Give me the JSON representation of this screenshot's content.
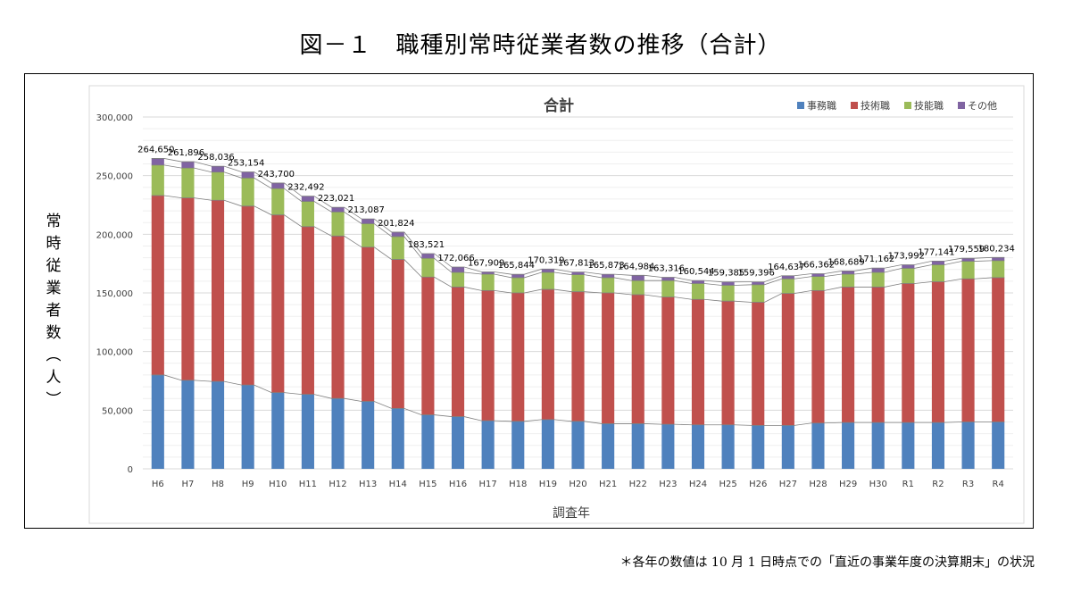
{
  "figure_title": "図－１　職種別常時従業者数の推移（合計）",
  "y_axis_title": "常時従業者数（人）",
  "footnote": "＊各年の数値は 10 月 1 日時点での「直近の事業年度の決算期末」の状況",
  "colors": {
    "事務職": "#4f81bd",
    "技術職": "#c0504d",
    "技能職": "#9bbb59",
    "その他": "#8064a2"
  },
  "chart_data": {
    "type": "bar",
    "stacked": true,
    "title": "合計",
    "xlabel": "調査年",
    "ylabel": "",
    "ylim": [
      0,
      300000
    ],
    "yticks": [
      0,
      50000,
      100000,
      150000,
      200000,
      250000,
      300000
    ],
    "ytick_labels": [
      "0",
      "50,000",
      "100,000",
      "150,000",
      "200,000",
      "250,000",
      "300,000"
    ],
    "grid": true,
    "legend_position": "top-right",
    "categories": [
      "H6",
      "H7",
      "H8",
      "H9",
      "H10",
      "H11",
      "H12",
      "H13",
      "H14",
      "H15",
      "H16",
      "H17",
      "H18",
      "H19",
      "H20",
      "H21",
      "H22",
      "H23",
      "H24",
      "H25",
      "H26",
      "H27",
      "H28",
      "H29",
      "H30",
      "R1",
      "R2",
      "R3",
      "R4"
    ],
    "series": [
      {
        "name": "事務職",
        "values": [
          80000,
          75500,
          74500,
          71500,
          65000,
          63500,
          60000,
          57500,
          51500,
          46000,
          44500,
          41000,
          40500,
          42000,
          40500,
          38500,
          38500,
          38000,
          37500,
          37500,
          37000,
          37000,
          39000,
          39500,
          39500,
          39500,
          39500,
          40000,
          40000
        ]
      },
      {
        "name": "技術職",
        "values": [
          153000,
          155500,
          154500,
          152500,
          151500,
          143000,
          138500,
          131500,
          127000,
          117500,
          110500,
          111000,
          109500,
          111000,
          110500,
          111500,
          110000,
          108500,
          107000,
          105500,
          105000,
          112500,
          113000,
          115500,
          115500,
          118500,
          120000,
          122000,
          123000
        ]
      },
      {
        "name": "技能職",
        "values": [
          26000,
          25500,
          24000,
          24000,
          22500,
          21500,
          20500,
          20000,
          19500,
          16000,
          12500,
          14000,
          13000,
          14500,
          14500,
          13000,
          12000,
          14000,
          13500,
          13500,
          15000,
          12500,
          12000,
          11000,
          12500,
          13000,
          14500,
          15000,
          14500
        ]
      },
      {
        "name": "その他",
        "values": [
          5650,
          5396,
          5036,
          5154,
          4700,
          4492,
          4021,
          4087,
          3824,
          4021,
          4566,
          1909,
          2844,
          2819,
          2313,
          2873,
          4484,
          2816,
          2544,
          2885,
          2396,
          2637,
          2362,
          2689,
          3662,
          2992,
          3141,
          2559,
          2734
        ]
      }
    ],
    "totals": [
      264650,
      261896,
      258036,
      253154,
      243700,
      232492,
      223021,
      213087,
      201824,
      183521,
      172066,
      167909,
      165844,
      170319,
      167813,
      165873,
      164984,
      163316,
      160544,
      159385,
      159396,
      164637,
      166362,
      168689,
      171162,
      173992,
      177141,
      179559,
      180234
    ],
    "total_labels": [
      "264,650",
      "261,896",
      "258,036",
      "253,154",
      "243,700",
      "232,492",
      "223,021",
      "213,087",
      "201,824",
      "183,521",
      "172,066",
      "167,909",
      "165,844",
      "170,319",
      "167,813",
      "165,873",
      "164,984",
      "163,316",
      "160,544",
      "159,385",
      "159,396",
      "164,637",
      "166,362",
      "168,689",
      "171,162",
      "173,992",
      "177,141",
      "179,559",
      "180,234"
    ]
  }
}
